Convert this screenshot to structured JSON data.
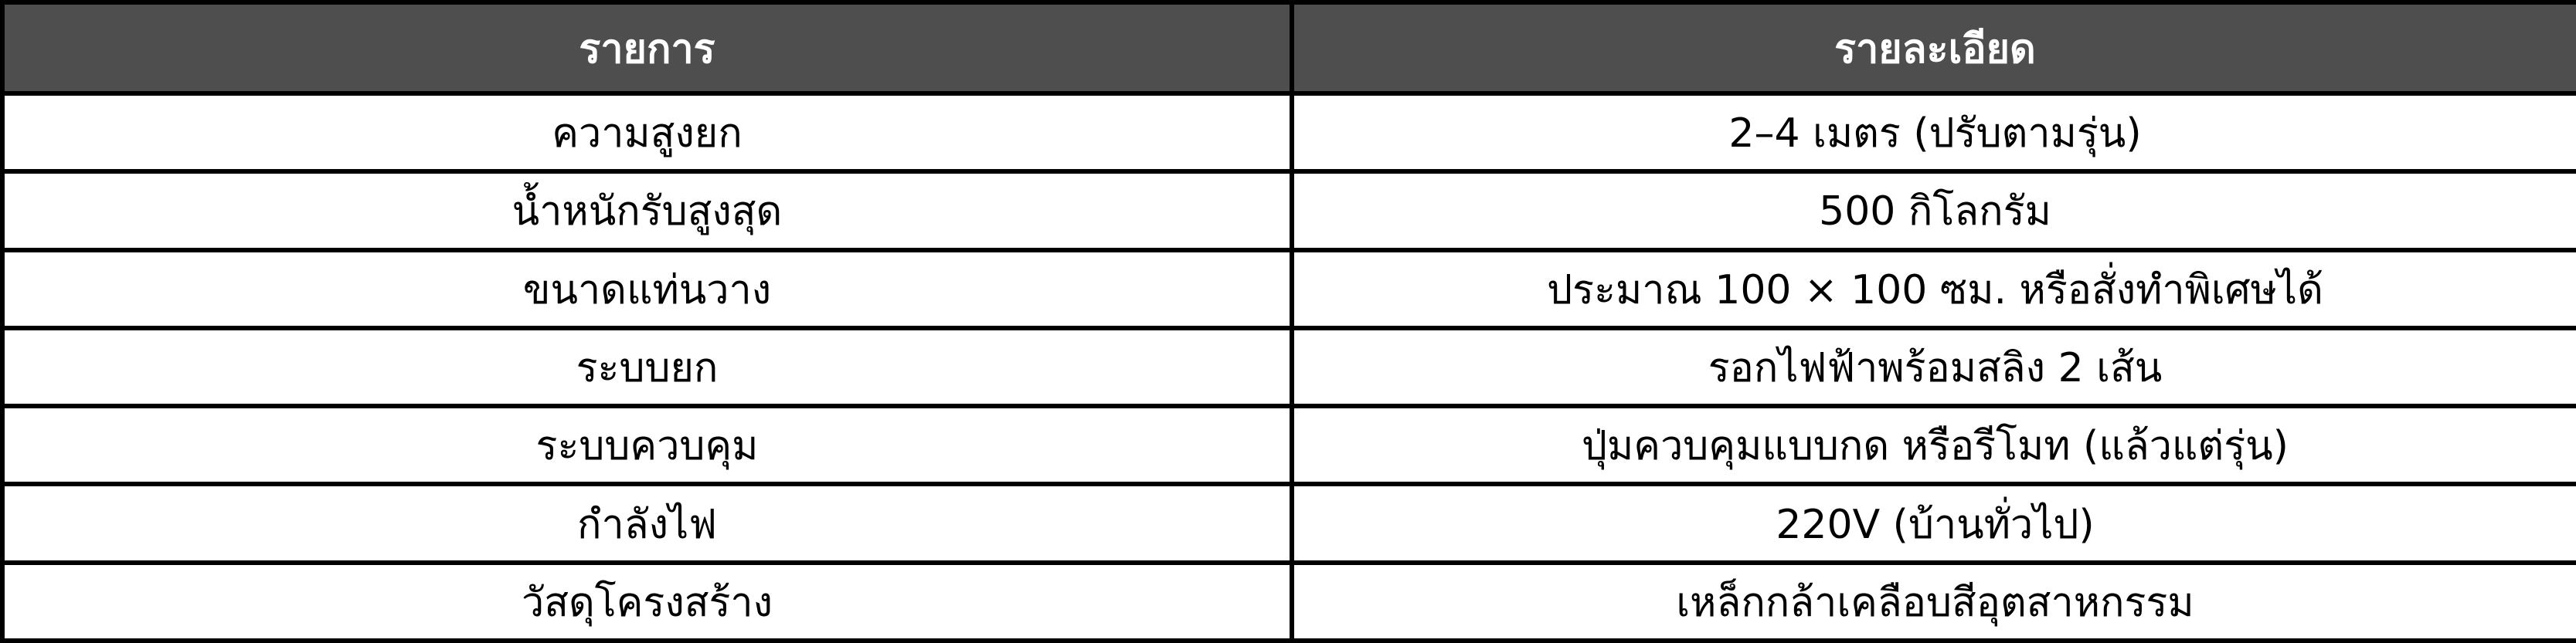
{
  "header": {
    "col1": "รายการ",
    "col2": "รายละเอียด"
  },
  "rows": [
    {
      "item": "ความสูงยก",
      "detail": "2–4 เมตร (ปรับตามรุ่น)"
    },
    {
      "item": "น้ำหนักรับสูงสุด",
      "detail": "500 กิโลกรัม"
    },
    {
      "item": "ขนาดแท่นวาง",
      "detail": "ประมาณ 100 × 100 ซม. หรือสั่งทำพิเศษได้"
    },
    {
      "item": "ระบบยก",
      "detail": "รอกไฟฟ้าพร้อมสลิง 2 เส้น"
    },
    {
      "item": "ระบบควบคุม",
      "detail": "ปุ่มควบคุมแบบกด หรือรีโมท (แล้วแต่รุ่น)"
    },
    {
      "item": "กำลังไฟ",
      "detail": "220V (บ้านทั่วไป)"
    },
    {
      "item": "วัสดุโครงสร้าง",
      "detail": "เหล็กกล้าเคลือบสีอุตสาหกรรม"
    }
  ],
  "colors": {
    "header_bg": "#4e4e4e",
    "header_text": "#ffffff",
    "border": "#000000"
  }
}
